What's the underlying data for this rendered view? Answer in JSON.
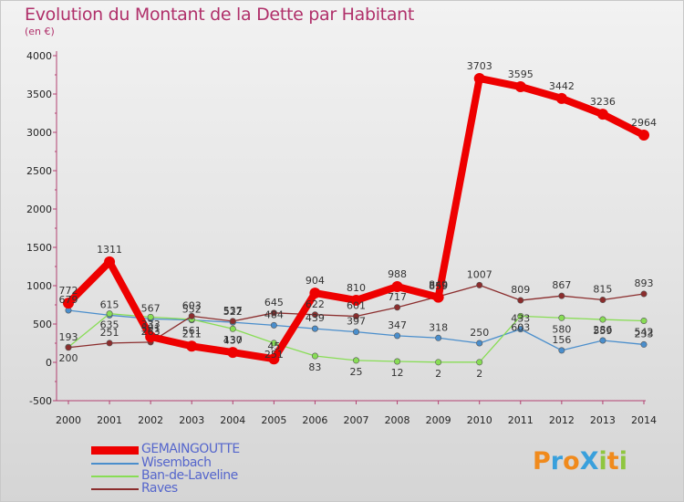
{
  "chart_data": {
    "type": "line",
    "title": "Evolution du Montant de la Dette par Habitant",
    "subtitle": "(en €)",
    "x": [
      2000,
      2001,
      2002,
      2003,
      2004,
      2005,
      2006,
      2007,
      2008,
      2009,
      2010,
      2011,
      2012,
      2013,
      2014
    ],
    "ylim": [
      -500,
      4000
    ],
    "yticks": [
      -500,
      0,
      500,
      1000,
      1500,
      2000,
      2500,
      3000,
      3500,
      4000
    ],
    "grid": false,
    "legend_position": "bottom-left",
    "series": [
      {
        "name": "GEMAINGOUTTE",
        "color": "#ee0000",
        "values": [
          772,
          1311,
          333,
          211,
          130,
          45,
          904,
          810,
          988,
          849,
          3703,
          3595,
          3442,
          3236,
          2964
        ]
      },
      {
        "name": "Wisembach",
        "color": "#4a8ecc",
        "values": [
          679,
          615,
          567,
          552,
          522,
          484,
          439,
          397,
          347,
          318,
          250,
          433,
          156,
          286,
          233
        ]
      },
      {
        "name": "Ban-de-Laveline",
        "color": "#88dd55",
        "values": [
          200,
          635,
          591,
          561,
          437,
          251,
          83,
          25,
          12,
          2,
          2,
          603,
          580,
          559,
          542
        ]
      },
      {
        "name": "Raves",
        "color": "#8b2d2d",
        "values": [
          193,
          251,
          263,
          603,
          537,
          645,
          622,
          601,
          717,
          859,
          1007,
          809,
          867,
          815,
          893
        ]
      }
    ]
  },
  "legend": [
    "GEMAINGOUTTE",
    "Wisembach",
    "Ban-de-Laveline",
    "Raves"
  ],
  "logo": {
    "text": "ProXiti",
    "letters": [
      "P",
      "r",
      "o",
      "X",
      "i",
      "t",
      "i"
    ],
    "colors": [
      "#f08a1c",
      "#39a0dc",
      "#f08a1c",
      "#39a0dc",
      "#8fc63f",
      "#f08a1c",
      "#8fc63f"
    ]
  }
}
